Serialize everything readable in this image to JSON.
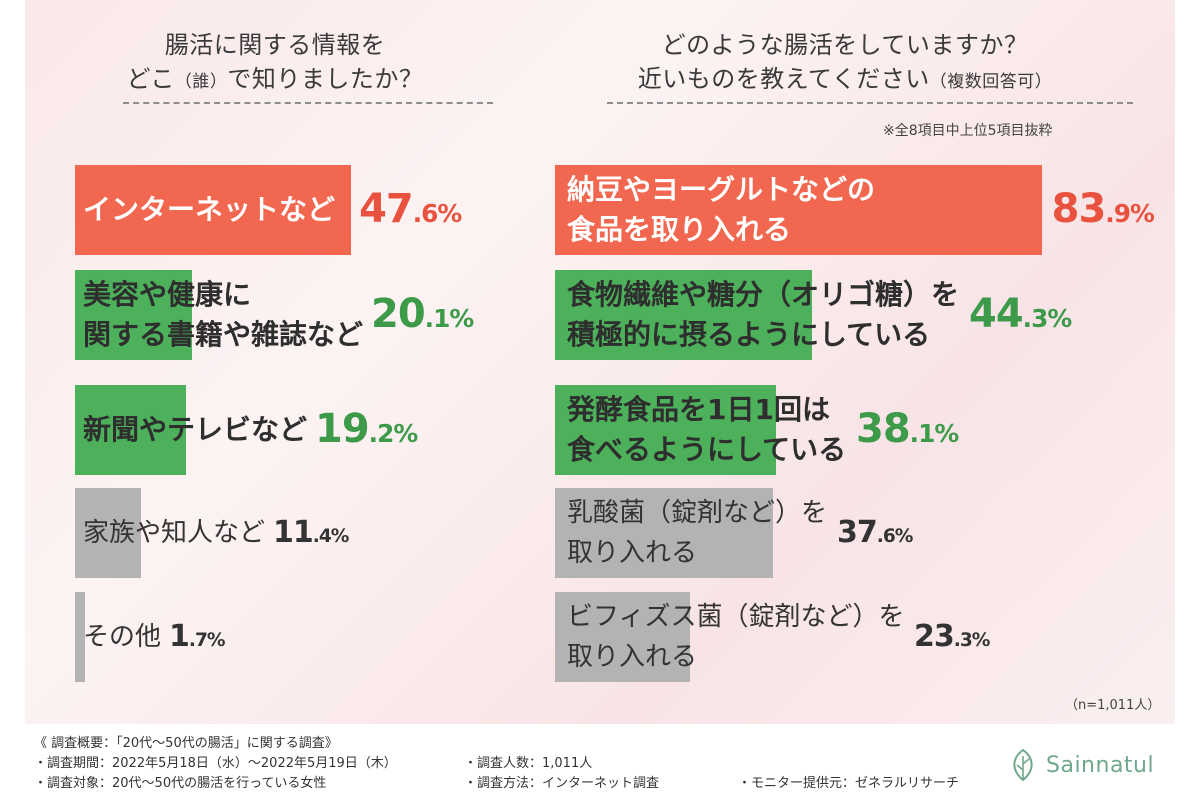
{
  "left_title": {
    "line1": "腸活に関する情報を",
    "line2_a": "どこ",
    "line2_b": "（誰）",
    "line2_c": "で知りましたか？"
  },
  "right_title": {
    "line1": "どのような腸活をしていますか？",
    "line2_a": "近いものを教えてください",
    "line2_b": "（複数回答可）"
  },
  "right_note": "※全8項目中上位5項目抜粋",
  "sample_note": "（n=1,011人）",
  "colors": {
    "top": "#f2674f",
    "green": "#4db05a",
    "gray": "#b3b3b3",
    "top_value": "#e9523f",
    "green_value": "#3c9a49",
    "gray_value": "#333333"
  },
  "chart_data": [
    {
      "type": "bar",
      "orientation": "horizontal",
      "title": "腸活に関する情報をどこ（誰）で知りましたか？",
      "unit": "%",
      "categories": [
        "インターネットなど",
        "美容や健康に関する書籍や雑誌など",
        "新聞やテレビなど",
        "家族や知人など",
        "その他"
      ],
      "label_lines": [
        [
          "インターネットなど"
        ],
        [
          "美容や健康に",
          "関する書籍や雑誌など"
        ],
        [
          "新聞やテレビなど"
        ],
        [
          "家族や知人など"
        ],
        [
          "その他"
        ]
      ],
      "values": [
        47.6,
        20.1,
        19.2,
        11.4,
        1.7
      ],
      "value_labels": [
        "47.6%",
        "20.1%",
        "19.2%",
        "11.4%",
        "1.7%"
      ],
      "xlim": [
        0,
        100
      ]
    },
    {
      "type": "bar",
      "orientation": "horizontal",
      "title": "どのような腸活をしていますか？近いものを教えてください（複数回答可）",
      "unit": "%",
      "categories": [
        "納豆やヨーグルトなどの食品を取り入れる",
        "食物繊維や糖分（オリゴ糖）を積極的に摂るようにしている",
        "発酵食品を1日1回は食べるようにしている",
        "乳酸菌（錠剤など）を取り入れる",
        "ビフィズス菌（錠剤など）を取り入れる"
      ],
      "label_lines": [
        [
          "納豆やヨーグルトなどの",
          "食品を取り入れる"
        ],
        [
          "食物繊維や糖分（オリゴ糖）を",
          "積極的に摂るようにしている"
        ],
        [
          "発酵食品を1日1回は",
          "食べるようにしている"
        ],
        [
          "乳酸菌（錠剤など）を",
          "取り入れる"
        ],
        [
          "ビフィズス菌（錠剤など）を",
          "取り入れる"
        ]
      ],
      "values": [
        83.9,
        44.3,
        38.1,
        37.6,
        23.3
      ],
      "value_labels": [
        "83.9%",
        "44.3%",
        "38.1%",
        "37.6%",
        "23.3%"
      ],
      "xlim": [
        0,
        100
      ]
    }
  ],
  "footer": {
    "outline": "《 調査概要：「20代～50代の腸活」に関する調査》",
    "period": "・調査期間：2022年5月18日（水）～2022年5月19日（木）",
    "target": "・調査対象：20代～50代の腸活を行っている女性",
    "count": "・調査人数：1,011人",
    "method": "・調査方法：インターネット調査",
    "monitor": "・モニター提供元：ゼネラルリサーチ"
  },
  "logo": {
    "text": "Sainnatul",
    "icon": "leaf-icon"
  }
}
